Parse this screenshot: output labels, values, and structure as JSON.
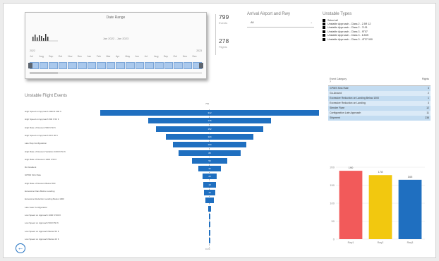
{
  "date_slicer": {
    "title": "Date Range",
    "range_text": "Jan 2022 - Jan 2023",
    "years": [
      "2022",
      "2023"
    ],
    "months": [
      "Jul",
      "Aug",
      "Sep",
      "Oct",
      "Nov",
      "Dec",
      "Jan",
      "Feb",
      "Mar",
      "Apr",
      "May",
      "Jun",
      "Jul",
      "Aug",
      "Sep",
      "Oct",
      "Nov",
      "Dec"
    ]
  },
  "cards": [
    {
      "value": "799",
      "label": "Events"
    },
    {
      "value": "278",
      "label": "Flights"
    }
  ],
  "aircraft_slicer": {
    "title": "Arrival Airport and Rwy",
    "selected": "All"
  },
  "unstable_types": {
    "title": "Unstable Types",
    "items": [
      "Select all",
      "Unstable Approach - Class 2 - 2.5R 12",
      "Unstable Approach - Class 2 - 7L01",
      "Unstable Approach - Class 3 - 9T07",
      "Unstable Approach - Class 3 - 6.53S",
      "Unstable Approach - Class 3 - 4T37 900"
    ]
  },
  "funnel": {
    "title": "Unstable Flight Events",
    "header": "799",
    "footer": "0.1%",
    "items": [
      {
        "label": "High Speed on Approach 1000 ft 300 ft",
        "value": 312
      },
      {
        "label": "High Speed on Approach 500 ft 50 ft",
        "value": 176
      },
      {
        "label": "High Rate of Descent 500 ft 50 ft",
        "value": 152
      },
      {
        "label": "High Speed on Approach 50 ft 30 ft",
        "value": 124
      },
      {
        "label": "Late Flap Configuration",
        "value": 104
      },
      {
        "label": "High Rate of Descent Variation 1000 ft 50 ft",
        "value": 88
      },
      {
        "label": "High Rate of Descent 1000 ft 50 ft",
        "value": 50
      },
      {
        "label": "RA Gradient",
        "value": 32
      },
      {
        "label": "GPWS Sink Rate",
        "value": 20
      },
      {
        "label": "High Rate of Descent Below 500",
        "value": 18
      },
      {
        "label": "Excessive Flare Before Landing",
        "value": 16
      },
      {
        "label": "Excessive Reduction Landing Below 1000",
        "value": 12
      },
      {
        "label": "Late Gear Configuration",
        "value": 4
      },
      {
        "label": "Low Speed on Approach 1000 ft 500 ft",
        "value": 3
      },
      {
        "label": "Low Speed on Approach 500 ft 50 ft",
        "value": 2
      },
      {
        "label": "Low Speed on Approach Below 50 ft",
        "value": 1
      },
      {
        "label": "Low Speed on Approach Below 20 ft",
        "value": 1
      }
    ]
  },
  "table": {
    "col1": "Event Category",
    "col1_sub": "?",
    "col2": "Flights",
    "rows": [
      {
        "label": "GPWS Sink Rate",
        "value": "3"
      },
      {
        "label": "Go-Around",
        "value": "2"
      },
      {
        "label": "Excessive Reduction on Landing Below 1000",
        "value": "1"
      },
      {
        "label": "Excessive Reduction on Landing",
        "value": "3"
      },
      {
        "label": "Slender Flare",
        "value": "12"
      },
      {
        "label": "Configuration Late Approach",
        "value": "11"
      },
      {
        "label": "Shipment",
        "value": "238"
      }
    ]
  },
  "chart_data": {
    "type": "bar",
    "title": "",
    "categories": [
      "Rwy1",
      "Rwy2",
      "Rwy3"
    ],
    "values": [
      190,
      178,
      165
    ],
    "labels": [
      "190",
      "178",
      "165"
    ],
    "colors": [
      "#f25a5a",
      "#f2c80f",
      "#1f6fc0"
    ],
    "ylim": [
      0,
      200
    ],
    "yticks": [
      0,
      50,
      100,
      150,
      200
    ],
    "xlabel": "",
    "ylabel": ""
  },
  "back_button": {
    "glyph": "←"
  }
}
